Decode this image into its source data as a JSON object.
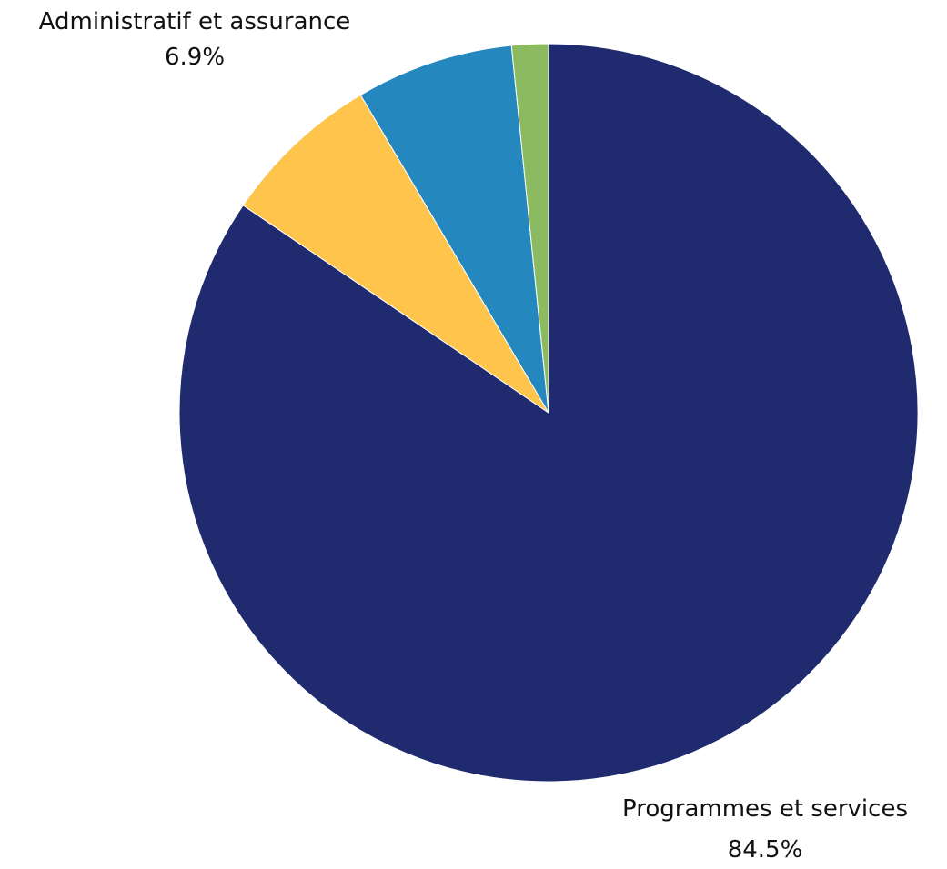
{
  "chart_data": {
    "type": "pie",
    "title": "",
    "start_angle_deg": 0,
    "direction": "clockwise",
    "slices": [
      {
        "name": "Programmes et services",
        "value": 84.5,
        "value_label": "84.5%",
        "color": "#1f2b6e",
        "labeled": true
      },
      {
        "name": "",
        "value": 7.0,
        "value_label": "",
        "color": "#fec44c",
        "labeled": false
      },
      {
        "name": "Administratif et assurance",
        "value": 6.9,
        "value_label": "6.9%",
        "color": "#2488bf",
        "labeled": true
      },
      {
        "name": "",
        "value": 1.6,
        "value_label": "",
        "color": "#8cba60",
        "labeled": false
      }
    ]
  }
}
